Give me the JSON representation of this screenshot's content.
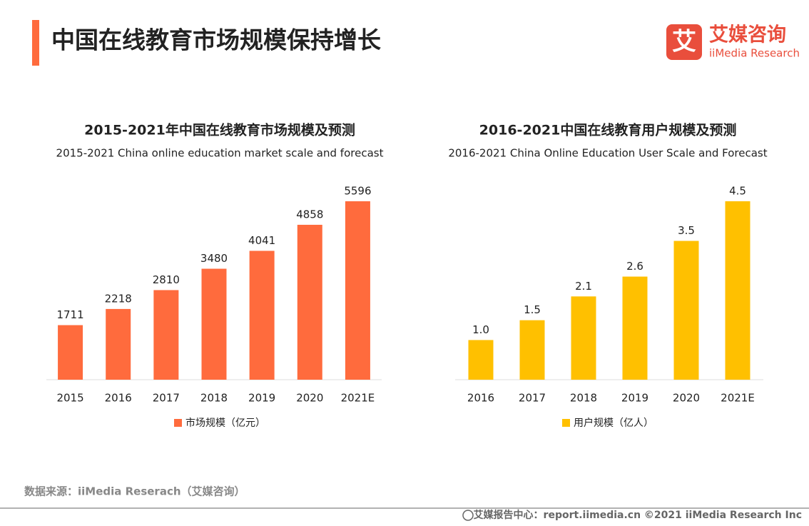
{
  "page": {
    "title": "中国在线教育市场规模保持增长",
    "logo_mark": "艾",
    "logo_cn": "艾媒咨询",
    "logo_en": "iiMedia Research",
    "source": "数据来源：iiMedia Reserach（艾媒咨询）",
    "footer": "艾媒报告中心：report.iimedia.cn  ©2021  iiMedia Research  Inc"
  },
  "chart_data": [
    {
      "type": "bar",
      "title": "2015-2021年中国在线教育市场规模及预测",
      "subtitle": "2015-2021 China online education market scale and forecast",
      "categories": [
        "2015",
        "2016",
        "2017",
        "2018",
        "2019",
        "2020",
        "2021E"
      ],
      "series": [
        {
          "name": "市场规模（亿元）",
          "color": "#ff6b3d",
          "values": [
            1711,
            2218,
            2810,
            3480,
            4041,
            4858,
            5596
          ]
        }
      ]
    },
    {
      "type": "bar",
      "title": "2016-2021中国在线教育用户规模及预测",
      "subtitle": "2016-2021 China Online Education User Scale and Forecast",
      "categories": [
        "2016",
        "2017",
        "2018",
        "2019",
        "2020",
        "2021E"
      ],
      "series": [
        {
          "name": "用户规模（亿人）",
          "color": "#ffc000",
          "values": [
            1.0,
            1.5,
            2.1,
            2.6,
            3.5,
            4.5
          ],
          "value_labels": [
            "1.0",
            "1.5",
            "2.1",
            "2.6",
            "3.5",
            "4.5"
          ]
        }
      ]
    }
  ]
}
